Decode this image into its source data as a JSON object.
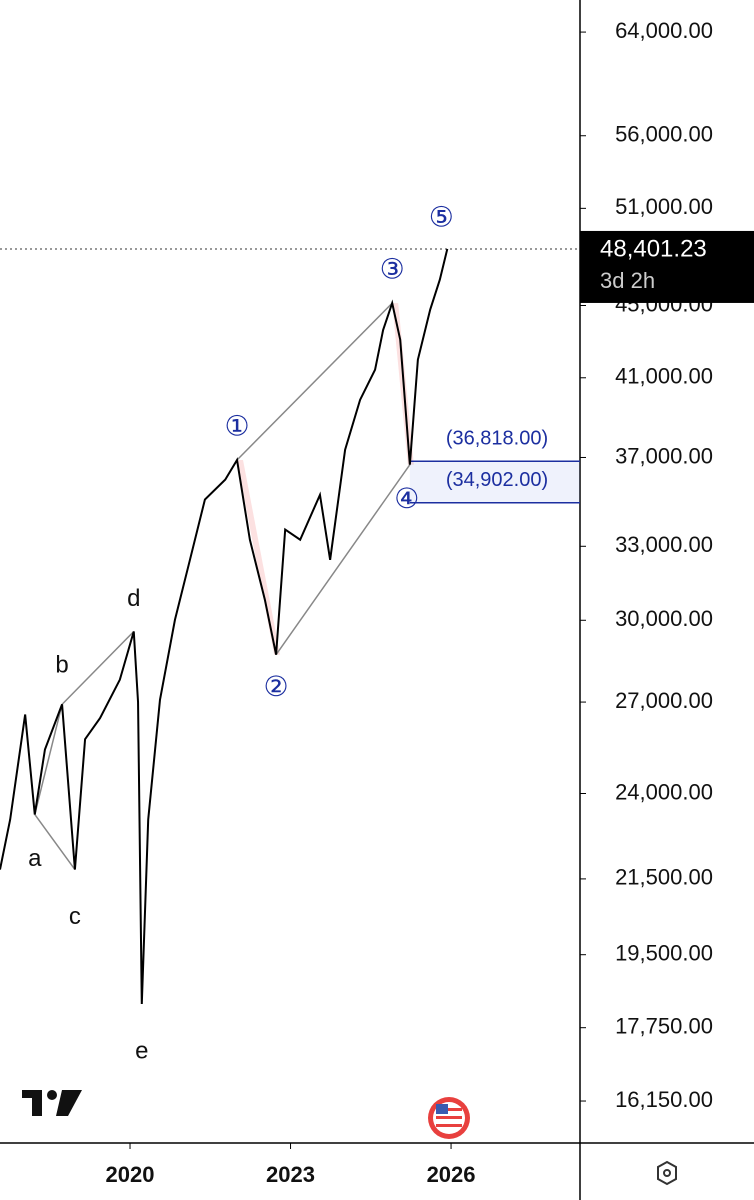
{
  "chart_data": {
    "type": "line",
    "x": [
      2017.57,
      2017.76,
      2018.04,
      2018.22,
      2018.41,
      2018.73,
      2018.97,
      2019.16,
      2019.44,
      2019.81,
      2020.07,
      2020.15,
      2020.22,
      2020.34,
      2020.56,
      2020.84,
      2021.12,
      2021.4,
      2021.78,
      2022.0,
      2022.24,
      2022.52,
      2022.73,
      2022.9,
      2023.18,
      2023.55,
      2023.74,
      2024.02,
      2024.3,
      2024.58,
      2024.73,
      2024.9,
      2025.05,
      2025.23,
      2025.38,
      2025.61,
      2025.79,
      2025.93
    ],
    "series": [
      {
        "color": "#000000",
        "values": [
          21760,
          23210,
          26570,
          23360,
          25400,
          26920,
          21760,
          25740,
          26450,
          27790,
          29570,
          27000,
          18300,
          23210,
          27080,
          30020,
          32430,
          35050,
          35960,
          36880,
          33280,
          30810,
          28700,
          33720,
          33280,
          35260,
          32430,
          37370,
          39850,
          41430,
          43600,
          45140,
          43060,
          36660,
          41970,
          44760,
          46520,
          48401.23
        ]
      }
    ],
    "xlim": [
      2017.57,
      2028.41
    ],
    "xticks": [
      2020,
      2023,
      2026
    ],
    "ylim": [
      15300,
      66700
    ],
    "log_scale": true,
    "yticks": [
      {
        "value": 64000,
        "label": "64,000.00"
      },
      {
        "value": 56000,
        "label": "56,000.00"
      },
      {
        "value": 51000,
        "label": "51,000.00"
      },
      {
        "value": 45000,
        "label": "45,000.00"
      },
      {
        "value": 41000,
        "label": "41,000.00"
      },
      {
        "value": 37000,
        "label": "37,000.00"
      },
      {
        "value": 33000,
        "label": "33,000.00"
      },
      {
        "value": 30000,
        "label": "30,000.00"
      },
      {
        "value": 27000,
        "label": "27,000.00"
      },
      {
        "value": 24000,
        "label": "24,000.00"
      },
      {
        "value": 21500,
        "label": "21,500.00"
      },
      {
        "value": 19500,
        "label": "19,500.00"
      },
      {
        "value": 17750,
        "label": "17,750.00"
      },
      {
        "value": 16150,
        "label": "16,150.00"
      }
    ],
    "last_price": {
      "value": 48401.23,
      "label": "48,401.23",
      "countdown": "3d 2h"
    },
    "levels": [
      {
        "value": 36818,
        "label": "(36,818.00)"
      },
      {
        "value": 34902,
        "label": "(34,902.00)"
      }
    ],
    "wave_labels": [
      "①",
      "②",
      "③",
      "④",
      "⑤"
    ],
    "correction_labels": [
      "a",
      "b",
      "c",
      "d",
      "e"
    ]
  }
}
